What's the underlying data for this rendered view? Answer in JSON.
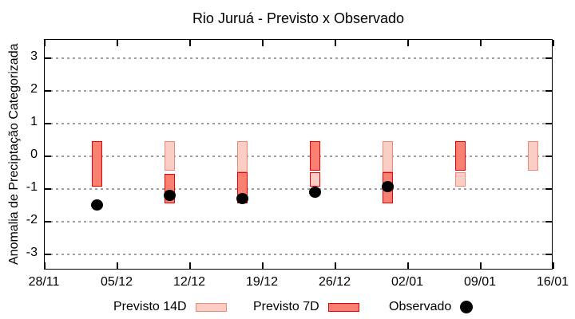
{
  "chart_data": {
    "type": "bar",
    "title": "Rio Juruá - Previsto x Observado",
    "ylabel": "Anomalia de Preciptação Categorizada",
    "xlabel": "",
    "ylim": [
      -3.5,
      3.55
    ],
    "xlim_days": [
      0,
      49
    ],
    "grid": "horizontal dashed gray lines at each integer y",
    "legend_position": "bottom, outside plot",
    "yticks": [
      {
        "label": "3",
        "value": 3
      },
      {
        "label": "2",
        "value": 2
      },
      {
        "label": "1",
        "value": 1
      },
      {
        "label": "0",
        "value": 0
      },
      {
        "label": "-1",
        "value": -1
      },
      {
        "label": "-2",
        "value": -2
      },
      {
        "label": "-3",
        "value": -3
      }
    ],
    "xticks": [
      {
        "label": "28/11",
        "day": 0
      },
      {
        "label": "05/12",
        "day": 7
      },
      {
        "label": "12/12",
        "day": 14
      },
      {
        "label": "19/12",
        "day": 21
      },
      {
        "label": "26/12",
        "day": 28
      },
      {
        "label": "02/01",
        "day": 35
      },
      {
        "label": "09/01",
        "day": 42
      },
      {
        "label": "16/01",
        "day": 49
      }
    ],
    "groups": [
      {
        "date": "03/12",
        "day": 5,
        "bars": [
          {
            "series": "7d",
            "from": 0.45,
            "to": -0.95
          }
        ],
        "observed": -1.5
      },
      {
        "date": "10/12",
        "day": 12,
        "bars": [
          {
            "series": "14d",
            "from": 0.45,
            "to": -0.45
          },
          {
            "series": "7d",
            "from": -0.55,
            "to": -1.45
          }
        ],
        "observed": -1.2
      },
      {
        "date": "17/12",
        "day": 19,
        "bars": [
          {
            "series": "14d",
            "from": 0.45,
            "to": -0.5
          },
          {
            "series": "7d",
            "from": -0.5,
            "to": -1.45
          }
        ],
        "observed": -1.3
      },
      {
        "date": "24/12",
        "day": 26,
        "bars": [
          {
            "series": "7d",
            "from": 0.45,
            "to": -0.45
          },
          {
            "series": "14d",
            "from": -0.5,
            "to": -0.95,
            "border": "#ee0000"
          }
        ],
        "observed": -1.1
      },
      {
        "date": "31/12",
        "day": 33,
        "bars": [
          {
            "series": "14d",
            "from": 0.45,
            "to": -0.5
          },
          {
            "series": "7d",
            "from": -0.5,
            "to": -1.45
          }
        ],
        "observed": -0.95
      },
      {
        "date": "07/01",
        "day": 40,
        "bars": [
          {
            "series": "7d",
            "from": 0.45,
            "to": -0.45
          },
          {
            "series": "14d",
            "from": -0.5,
            "to": -0.95
          }
        ],
        "observed": null
      },
      {
        "date": "14/01",
        "day": 47,
        "bars": [
          {
            "series": "14d",
            "from": 0.45,
            "to": -0.45
          }
        ],
        "observed": null
      }
    ],
    "legend": {
      "items": [
        {
          "label": "Previsto 14D",
          "swatch": "14d"
        },
        {
          "label": "Previsto 7D",
          "swatch": "7d"
        },
        {
          "label": "Observado",
          "swatch": "dot"
        }
      ]
    }
  },
  "colors": {
    "background": "#ffffff",
    "axis": "#000000",
    "grid": "#a0a0a0",
    "series": {
      "14d": {
        "fill": "#facdc5",
        "border": "#f0887a"
      },
      "7d": {
        "fill": "#fa8072",
        "border": "#ee0000"
      },
      "observed": "#000000"
    }
  }
}
